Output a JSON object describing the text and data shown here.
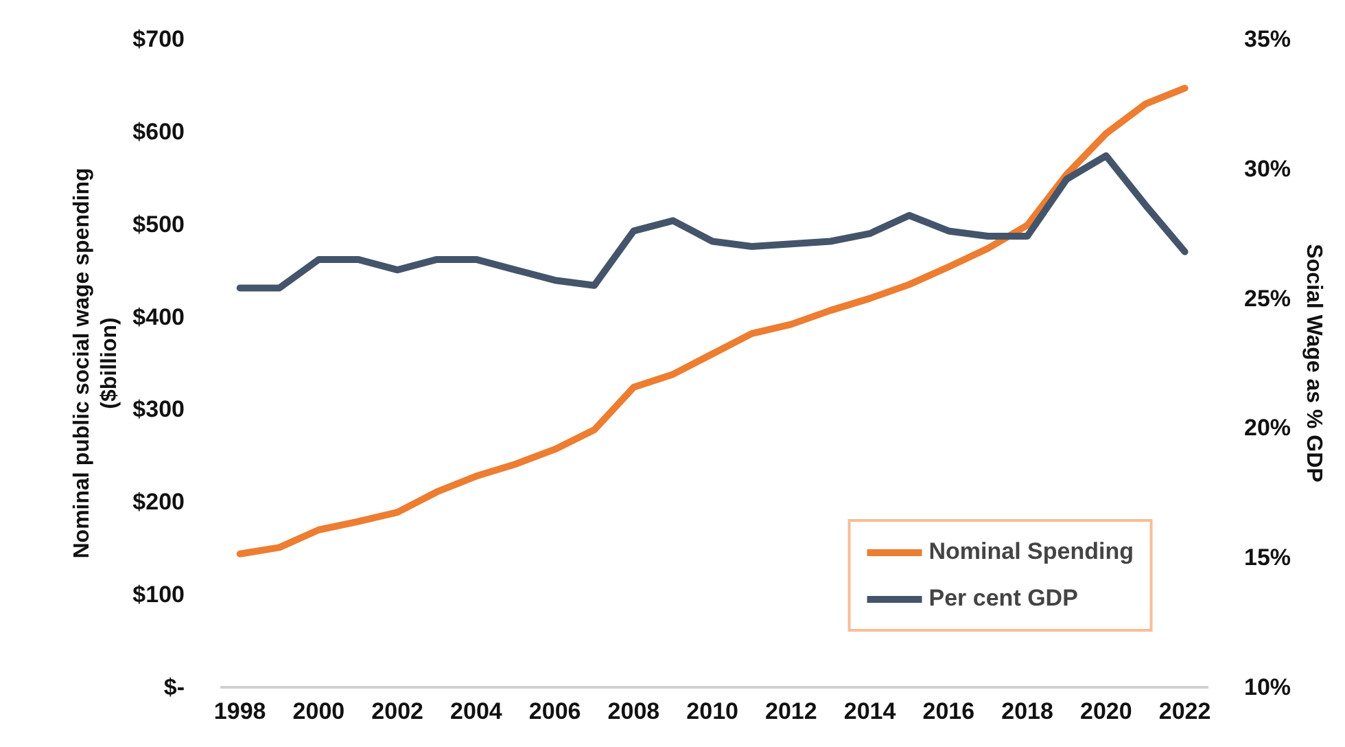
{
  "chart_data": {
    "type": "line",
    "xlabel": null,
    "ylabel": "Nominal public social wage spending ($billion)",
    "y2label": "Social Wage as % GDP",
    "x": [
      1998,
      1999,
      2000,
      2001,
      2002,
      2003,
      2004,
      2005,
      2006,
      2007,
      2008,
      2009,
      2010,
      2011,
      2012,
      2013,
      2014,
      2015,
      2016,
      2017,
      2018,
      2019,
      2020,
      2021,
      2022
    ],
    "series": [
      {
        "name": "Nominal Spending",
        "color": "#ed7d31",
        "values": [
          144,
          151,
          170,
          179,
          189,
          211,
          228,
          241,
          257,
          278,
          324,
          338,
          360,
          382,
          392,
          407,
          420,
          435,
          454,
          474,
          499,
          554,
          598,
          630,
          647
        ]
      },
      {
        "name": "Per cent GDP",
        "color": "#44546a",
        "axis": "y2",
        "values": [
          25.4,
          25.4,
          26.5,
          26.5,
          26.1,
          26.5,
          26.5,
          26.1,
          25.7,
          25.5,
          27.6,
          28.0,
          27.2,
          27.0,
          27.1,
          27.2,
          27.5,
          28.2,
          27.6,
          27.4,
          27.4,
          29.6,
          30.5,
          28.6,
          26.8
        ]
      }
    ],
    "xlim": [
      1997.5,
      2022.6
    ],
    "xticks": [
      1998,
      2000,
      2002,
      2004,
      2006,
      2008,
      2010,
      2012,
      2014,
      2016,
      2018,
      2020,
      2022
    ],
    "ylim": [
      0,
      700
    ],
    "yticks": [
      {
        "value": 0,
        "label": "$-"
      },
      {
        "value": 100,
        "label": "$100"
      },
      {
        "value": 200,
        "label": "$200"
      },
      {
        "value": 300,
        "label": "$300"
      },
      {
        "value": 400,
        "label": "$400"
      },
      {
        "value": 500,
        "label": "$500"
      },
      {
        "value": 600,
        "label": "$600"
      },
      {
        "value": 700,
        "label": "$700"
      }
    ],
    "y2lim": [
      10,
      35
    ],
    "y2ticks": [
      {
        "value": 10,
        "label": "10%"
      },
      {
        "value": 15,
        "label": "15%"
      },
      {
        "value": 20,
        "label": "20%"
      },
      {
        "value": 25,
        "label": "25%"
      },
      {
        "value": 30,
        "label": "30%"
      },
      {
        "value": 35,
        "label": "35%"
      }
    ],
    "grid": false,
    "legend": "bottom right",
    "line_style": "solid",
    "marker": "none"
  }
}
